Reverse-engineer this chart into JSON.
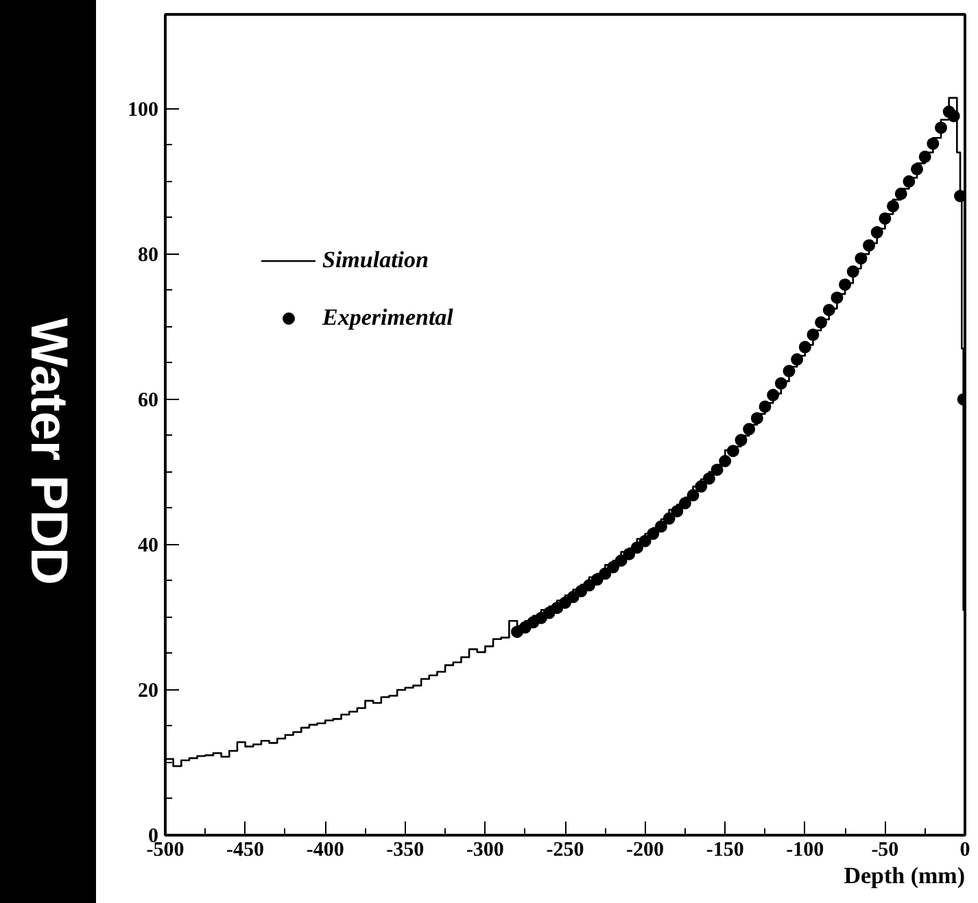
{
  "chart_data": {
    "type": "step",
    "xlabel": "Depth (mm)",
    "ylabel": "Water PDD",
    "xlim": [
      -500,
      0
    ],
    "ylim": [
      0,
      113
    ],
    "xticks": [
      -500,
      -450,
      -400,
      -350,
      -300,
      -250,
      -200,
      -150,
      -100,
      -50,
      0
    ],
    "yticks": [
      0,
      20,
      40,
      60,
      80,
      100
    ],
    "grid": false,
    "legend": "top left",
    "series": [
      {
        "name": "Simulation",
        "color": "#000000",
        "line_style": "solid",
        "x": [
          -500,
          -495,
          -490,
          -485,
          -480,
          -475,
          -470,
          -465,
          -460,
          -455,
          -450,
          -445,
          -440,
          -435,
          -430,
          -425,
          -420,
          -415,
          -410,
          -405,
          -400,
          -395,
          -390,
          -385,
          -380,
          -375,
          -370,
          -365,
          -360,
          -355,
          -350,
          -345,
          -340,
          -335,
          -330,
          -325,
          -320,
          -315,
          -310,
          -305,
          -300,
          -295,
          -290,
          -285,
          -280,
          -275,
          -270,
          -265,
          -260,
          -255,
          -250,
          -245,
          -240,
          -235,
          -230,
          -225,
          -220,
          -215,
          -210,
          -205,
          -200,
          -195,
          -190,
          -185,
          -180,
          -175,
          -170,
          -165,
          -160,
          -155,
          -150,
          -145,
          -140,
          -135,
          -130,
          -125,
          -120,
          -115,
          -110,
          -105,
          -100,
          -95,
          -90,
          -85,
          -80,
          -75,
          -70,
          -65,
          -60,
          -55,
          -50,
          -45,
          -40,
          -35,
          -30,
          -25,
          -20,
          -15,
          -10,
          -5,
          -3,
          -2,
          -1,
          0
        ],
        "values": [
          10.5,
          9.5,
          10.3,
          10.6,
          10.9,
          11.0,
          11.3,
          10.8,
          11.6,
          12.8,
          12.2,
          12.5,
          13.0,
          12.7,
          13.3,
          13.8,
          14.2,
          14.8,
          15.2,
          15.4,
          15.8,
          16.0,
          16.6,
          17.0,
          17.5,
          18.5,
          18.2,
          19.0,
          19.2,
          20.0,
          20.3,
          20.6,
          21.5,
          22.0,
          22.5,
          23.4,
          23.8,
          24.5,
          25.6,
          25.2,
          26.0,
          27.0,
          27.2,
          29.5,
          28.8,
          29.5,
          30.2,
          31.0,
          31.5,
          32.3,
          33.0,
          33.8,
          34.5,
          35.5,
          36.0,
          37.2,
          37.8,
          39.0,
          39.5,
          40.8,
          41.5,
          42.3,
          43.5,
          44.8,
          45.5,
          46.5,
          48.0,
          49.0,
          50.0,
          51.0,
          53.0,
          53.5,
          55.0,
          56.5,
          58.0,
          59.5,
          60.8,
          62.5,
          64.5,
          66.0,
          67.5,
          69.5,
          71.0,
          72.5,
          74.5,
          76.0,
          78.0,
          80.0,
          81.5,
          83.5,
          85.5,
          87.5,
          89.0,
          90.5,
          92.5,
          94.0,
          96.0,
          98.5,
          101.5,
          94.0,
          88.0,
          67.0,
          31.0,
          31.0
        ]
      },
      {
        "name": "Experimental",
        "type": "scatter",
        "color": "#000000",
        "marker": "circle",
        "x": [
          -280,
          -275,
          -270,
          -265,
          -260,
          -255,
          -250,
          -245,
          -240,
          -235,
          -230,
          -225,
          -220,
          -215,
          -210,
          -205,
          -200,
          -195,
          -190,
          -185,
          -180,
          -175,
          -170,
          -165,
          -160,
          -155,
          -150,
          -145,
          -140,
          -135,
          -130,
          -125,
          -120,
          -115,
          -110,
          -105,
          -100,
          -95,
          -90,
          -85,
          -80,
          -75,
          -70,
          -65,
          -60,
          -55,
          -50,
          -45,
          -40,
          -35,
          -30,
          -25,
          -20,
          -15,
          -10,
          -7,
          -3,
          -1
        ],
        "values": [
          28.0,
          28.6,
          29.3,
          29.9,
          30.6,
          31.3,
          32.0,
          32.8,
          33.6,
          34.4,
          35.2,
          36.0,
          36.9,
          37.8,
          38.7,
          39.6,
          40.5,
          41.5,
          42.5,
          43.6,
          44.6,
          45.7,
          46.8,
          48.0,
          49.1,
          50.3,
          51.5,
          52.9,
          54.4,
          55.9,
          57.4,
          59.0,
          60.6,
          62.2,
          63.9,
          65.5,
          67.2,
          68.9,
          70.6,
          72.3,
          74.0,
          75.8,
          77.6,
          79.4,
          81.2,
          83.0,
          84.9,
          86.6,
          88.3,
          90.0,
          91.7,
          93.4,
          95.2,
          97.4,
          99.6,
          99.0,
          88.0,
          60.0
        ]
      }
    ]
  }
}
